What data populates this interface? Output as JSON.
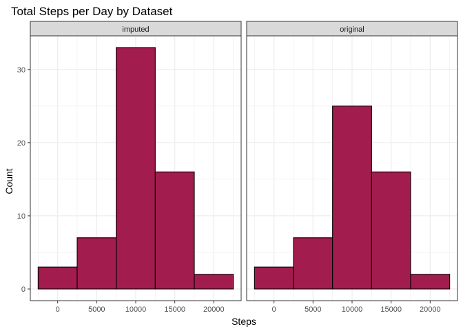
{
  "chart_data": {
    "type": "bar",
    "title": "Total Steps per Day by Dataset",
    "xlabel": "Steps",
    "ylabel": "Count",
    "bin_width": 5000,
    "xlim": [
      -3500,
      23500
    ],
    "ylim": [
      -1.6,
      34.6
    ],
    "x_ticks": [
      0,
      5000,
      10000,
      15000,
      20000
    ],
    "y_ticks": [
      0,
      10,
      20,
      30
    ],
    "grid": true,
    "bar_color": "#a31c4e",
    "bar_outline": "#000000",
    "panels": [
      {
        "name": "imputed",
        "bins": [
          {
            "x": 0,
            "count": 3
          },
          {
            "x": 5000,
            "count": 7
          },
          {
            "x": 10000,
            "count": 33
          },
          {
            "x": 15000,
            "count": 16
          },
          {
            "x": 20000,
            "count": 2
          }
        ]
      },
      {
        "name": "original",
        "bins": [
          {
            "x": 0,
            "count": 3
          },
          {
            "x": 5000,
            "count": 7
          },
          {
            "x": 10000,
            "count": 25
          },
          {
            "x": 15000,
            "count": 16
          },
          {
            "x": 20000,
            "count": 2
          }
        ]
      }
    ]
  }
}
